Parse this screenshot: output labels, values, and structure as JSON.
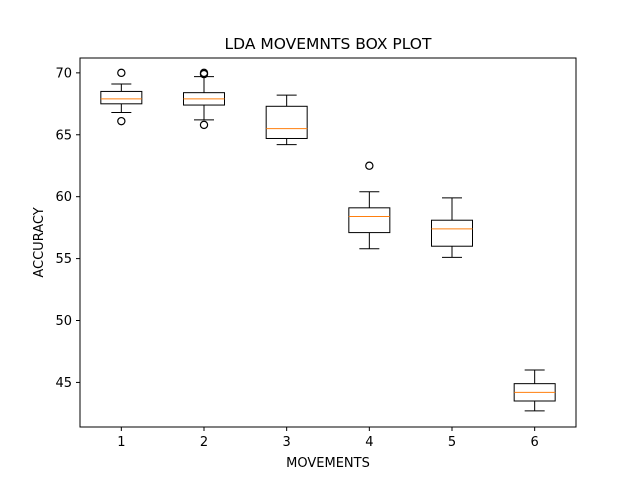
{
  "chart_data": {
    "type": "boxplot",
    "title": "LDA MOVEMNTS BOX PLOT",
    "xlabel": "MOVEMENTS",
    "ylabel": "ACCURACY",
    "categories": [
      "1",
      "2",
      "3",
      "4",
      "5",
      "6"
    ],
    "ylim": [
      41.4,
      71.2
    ],
    "yticks": [
      45,
      50,
      55,
      60,
      65,
      70
    ],
    "grid": false,
    "colors": {
      "box": "#000000",
      "median": "#ff7f0e",
      "background": "#ffffff"
    },
    "boxes": [
      {
        "category": "1",
        "whislo": 66.8,
        "q1": 67.5,
        "med": 67.9,
        "q3": 68.5,
        "whishi": 69.1,
        "fliers": [
          70.0,
          66.1
        ]
      },
      {
        "category": "2",
        "whislo": 66.2,
        "q1": 67.4,
        "med": 67.9,
        "q3": 68.4,
        "whishi": 69.7,
        "fliers": [
          69.9,
          70.0,
          65.8
        ]
      },
      {
        "category": "3",
        "whislo": 64.2,
        "q1": 64.7,
        "med": 65.5,
        "q3": 67.3,
        "whishi": 68.2,
        "fliers": []
      },
      {
        "category": "4",
        "whislo": 55.8,
        "q1": 57.1,
        "med": 58.4,
        "q3": 59.1,
        "whishi": 60.4,
        "fliers": [
          62.5
        ]
      },
      {
        "category": "5",
        "whislo": 55.1,
        "q1": 56.0,
        "med": 57.4,
        "q3": 58.1,
        "whishi": 59.9,
        "fliers": []
      },
      {
        "category": "6",
        "whislo": 42.7,
        "q1": 43.5,
        "med": 44.2,
        "q3": 44.9,
        "whishi": 46.0,
        "fliers": []
      }
    ]
  }
}
